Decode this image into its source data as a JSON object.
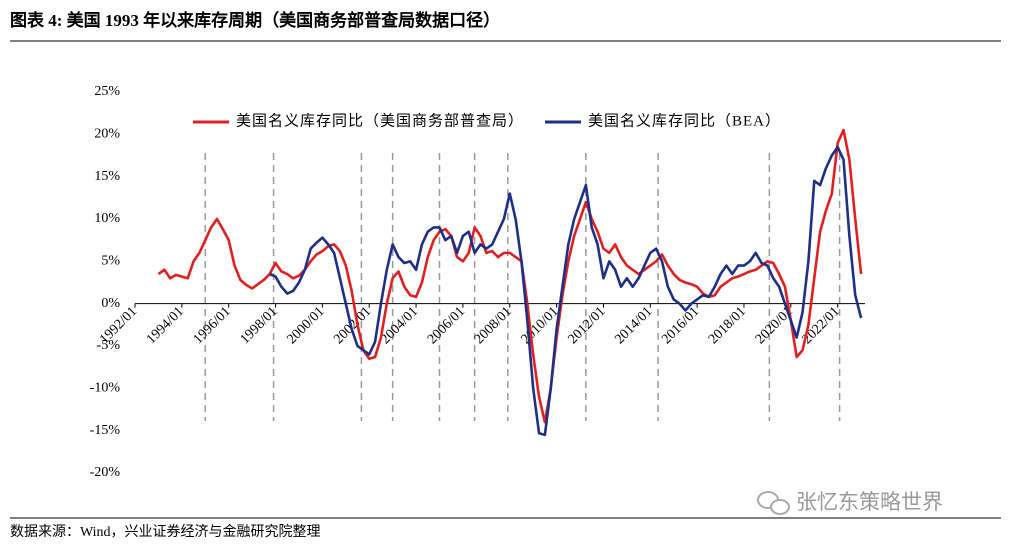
{
  "chart_data": {
    "type": "line",
    "title": "图表 4:  美国 1993 年以来库存周期（美国商务部普查局数据口径）",
    "source": "数据来源：Wind，兴业证券经济与金融研究院整理",
    "watermark": "张忆东策略世界",
    "legend": "top",
    "x": [
      "1993/01",
      "1993/04",
      "1993/07",
      "1993/10",
      "1994/01",
      "1994/04",
      "1994/07",
      "1994/10",
      "1995/01",
      "1995/04",
      "1995/07",
      "1995/10",
      "1996/01",
      "1996/04",
      "1996/07",
      "1996/10",
      "1997/01",
      "1997/04",
      "1997/07",
      "1997/10",
      "1998/01",
      "1998/04",
      "1998/07",
      "1998/10",
      "1999/01",
      "1999/04",
      "1999/07",
      "1999/10",
      "2000/01",
      "2000/04",
      "2000/07",
      "2000/10",
      "2001/01",
      "2001/04",
      "2001/07",
      "2001/10",
      "2002/01",
      "2002/04",
      "2002/07",
      "2002/10",
      "2003/01",
      "2003/04",
      "2003/07",
      "2003/10",
      "2004/01",
      "2004/04",
      "2004/07",
      "2004/10",
      "2005/01",
      "2005/04",
      "2005/07",
      "2005/10",
      "2006/01",
      "2006/04",
      "2006/07",
      "2006/10",
      "2007/01",
      "2007/04",
      "2007/07",
      "2007/10",
      "2008/01",
      "2008/04",
      "2008/07",
      "2008/10",
      "2009/01",
      "2009/04",
      "2009/07",
      "2009/10",
      "2010/01",
      "2010/04",
      "2010/07",
      "2010/10",
      "2011/01",
      "2011/04",
      "2011/07",
      "2011/10",
      "2012/01",
      "2012/04",
      "2012/07",
      "2012/10",
      "2013/01",
      "2013/04",
      "2013/07",
      "2013/10",
      "2014/01",
      "2014/04",
      "2014/07",
      "2014/10",
      "2015/01",
      "2015/04",
      "2015/07",
      "2015/10",
      "2016/01",
      "2016/04",
      "2016/07",
      "2016/10",
      "2017/01",
      "2017/04",
      "2017/07",
      "2017/10",
      "2018/01",
      "2018/04",
      "2018/07",
      "2018/10",
      "2019/01",
      "2019/04",
      "2019/07",
      "2019/10",
      "2020/01",
      "2020/04",
      "2020/07",
      "2020/10",
      "2021/01",
      "2021/04",
      "2021/07",
      "2021/10",
      "2022/01",
      "2022/04",
      "2022/07",
      "2022/10",
      "2023/01"
    ],
    "series": [
      {
        "name": "美国名义库存同比（美国商务部普查局）",
        "color": "#e02020",
        "values": [
          3.5,
          4.0,
          3.0,
          3.4,
          3.2,
          3.0,
          5.0,
          6.0,
          7.5,
          9.0,
          10.0,
          8.8,
          7.5,
          4.5,
          2.8,
          2.2,
          1.8,
          2.3,
          2.8,
          3.5,
          4.8,
          3.8,
          3.5,
          3.0,
          3.3,
          4.0,
          5.0,
          5.8,
          6.2,
          6.8,
          7.0,
          6.2,
          4.5,
          1.5,
          -2.5,
          -5.5,
          -6.5,
          -6.3,
          -4.0,
          0.0,
          3.0,
          3.8,
          2.0,
          1.0,
          0.8,
          2.5,
          5.5,
          7.5,
          8.5,
          8.8,
          8.0,
          5.5,
          5.0,
          6.0,
          9.0,
          8.0,
          6.0,
          6.2,
          5.5,
          6.0,
          6.0,
          5.5,
          5.0,
          0.0,
          -6.0,
          -11.0,
          -14.0,
          -10.0,
          -4.0,
          1.0,
          5.0,
          8.0,
          10.0,
          12.0,
          10.0,
          8.5,
          6.5,
          6.0,
          7.0,
          5.5,
          4.5,
          4.0,
          3.5,
          4.0,
          4.5,
          5.0,
          5.8,
          4.5,
          3.5,
          2.8,
          2.5,
          2.3,
          2.0,
          1.2,
          0.8,
          1.0,
          2.0,
          2.5,
          3.0,
          3.2,
          3.5,
          3.8,
          4.0,
          4.5,
          5.0,
          4.8,
          3.5,
          2.0,
          -2.0,
          -6.3,
          -5.5,
          -2.5,
          3.0,
          8.5,
          11.0,
          13.0,
          19.0,
          20.5,
          17.0,
          10.0,
          3.5
        ]
      },
      {
        "name": "美国名义库存同比（BEA）",
        "color": "#1f2f86",
        "values": [
          null,
          null,
          null,
          null,
          null,
          null,
          null,
          null,
          null,
          null,
          null,
          null,
          null,
          null,
          null,
          null,
          null,
          null,
          null,
          3.5,
          3.2,
          2.0,
          1.2,
          1.5,
          2.5,
          4.0,
          6.5,
          7.2,
          7.8,
          7.0,
          6.0,
          3.0,
          0.0,
          -3.0,
          -5.0,
          -5.5,
          -6.0,
          -4.5,
          0.0,
          4.0,
          7.0,
          5.5,
          4.8,
          5.0,
          4.0,
          7.0,
          8.5,
          9.0,
          9.0,
          7.5,
          8.0,
          6.0,
          8.0,
          8.5,
          6.0,
          7.0,
          6.5,
          7.0,
          8.5,
          10.0,
          13.0,
          10.0,
          5.0,
          -2.0,
          -10.0,
          -15.3,
          -15.5,
          -10.0,
          -3.0,
          2.0,
          7.0,
          10.0,
          12.0,
          14.0,
          9.0,
          7.0,
          3.0,
          5.0,
          4.0,
          2.0,
          3.0,
          2.0,
          3.0,
          4.5,
          6.0,
          6.5,
          5.0,
          2.0,
          0.5,
          0.0,
          -0.8,
          0.0,
          0.5,
          1.0,
          0.8,
          2.0,
          3.5,
          4.5,
          3.5,
          4.5,
          4.5,
          5.0,
          6.0,
          4.8,
          4.5,
          3.0,
          2.0,
          0.0,
          -2.0,
          -4.0,
          -1.0,
          5.0,
          14.5,
          14.0,
          16.0,
          17.5,
          18.5,
          17.0,
          8.0,
          1.0,
          -1.7
        ]
      }
    ],
    "xlim": [
      "1992/01",
      "2023/03"
    ],
    "xticks": [
      "1992/01",
      "1994/01",
      "1996/01",
      "1998/01",
      "2000/01",
      "2002/01",
      "2004/01",
      "2006/01",
      "2008/01",
      "2010/01",
      "2012/01",
      "2014/01",
      "2016/01",
      "2018/01",
      "2020/01",
      "2022/01"
    ],
    "ylim": [
      -20,
      25
    ],
    "yticks": [
      {
        "value": -20,
        "label": "-20%"
      },
      {
        "value": -15,
        "label": "-15%"
      },
      {
        "value": -10,
        "label": "-10%"
      },
      {
        "value": -5,
        "label": "-5%"
      },
      {
        "value": 0,
        "label": "0%"
      },
      {
        "value": 5,
        "label": "5%"
      },
      {
        "value": 10,
        "label": "10%"
      },
      {
        "value": 15,
        "label": "15%"
      },
      {
        "value": 20,
        "label": "20%"
      },
      {
        "value": 25,
        "label": "25%"
      }
    ],
    "vlines": [
      "1995/01",
      "1997/12",
      "2001/09",
      "2003/01",
      "2005/01",
      "2006/07",
      "2007/12",
      "2011/04",
      "2014/05",
      "2019/02",
      "2022/02"
    ],
    "grid": false
  }
}
